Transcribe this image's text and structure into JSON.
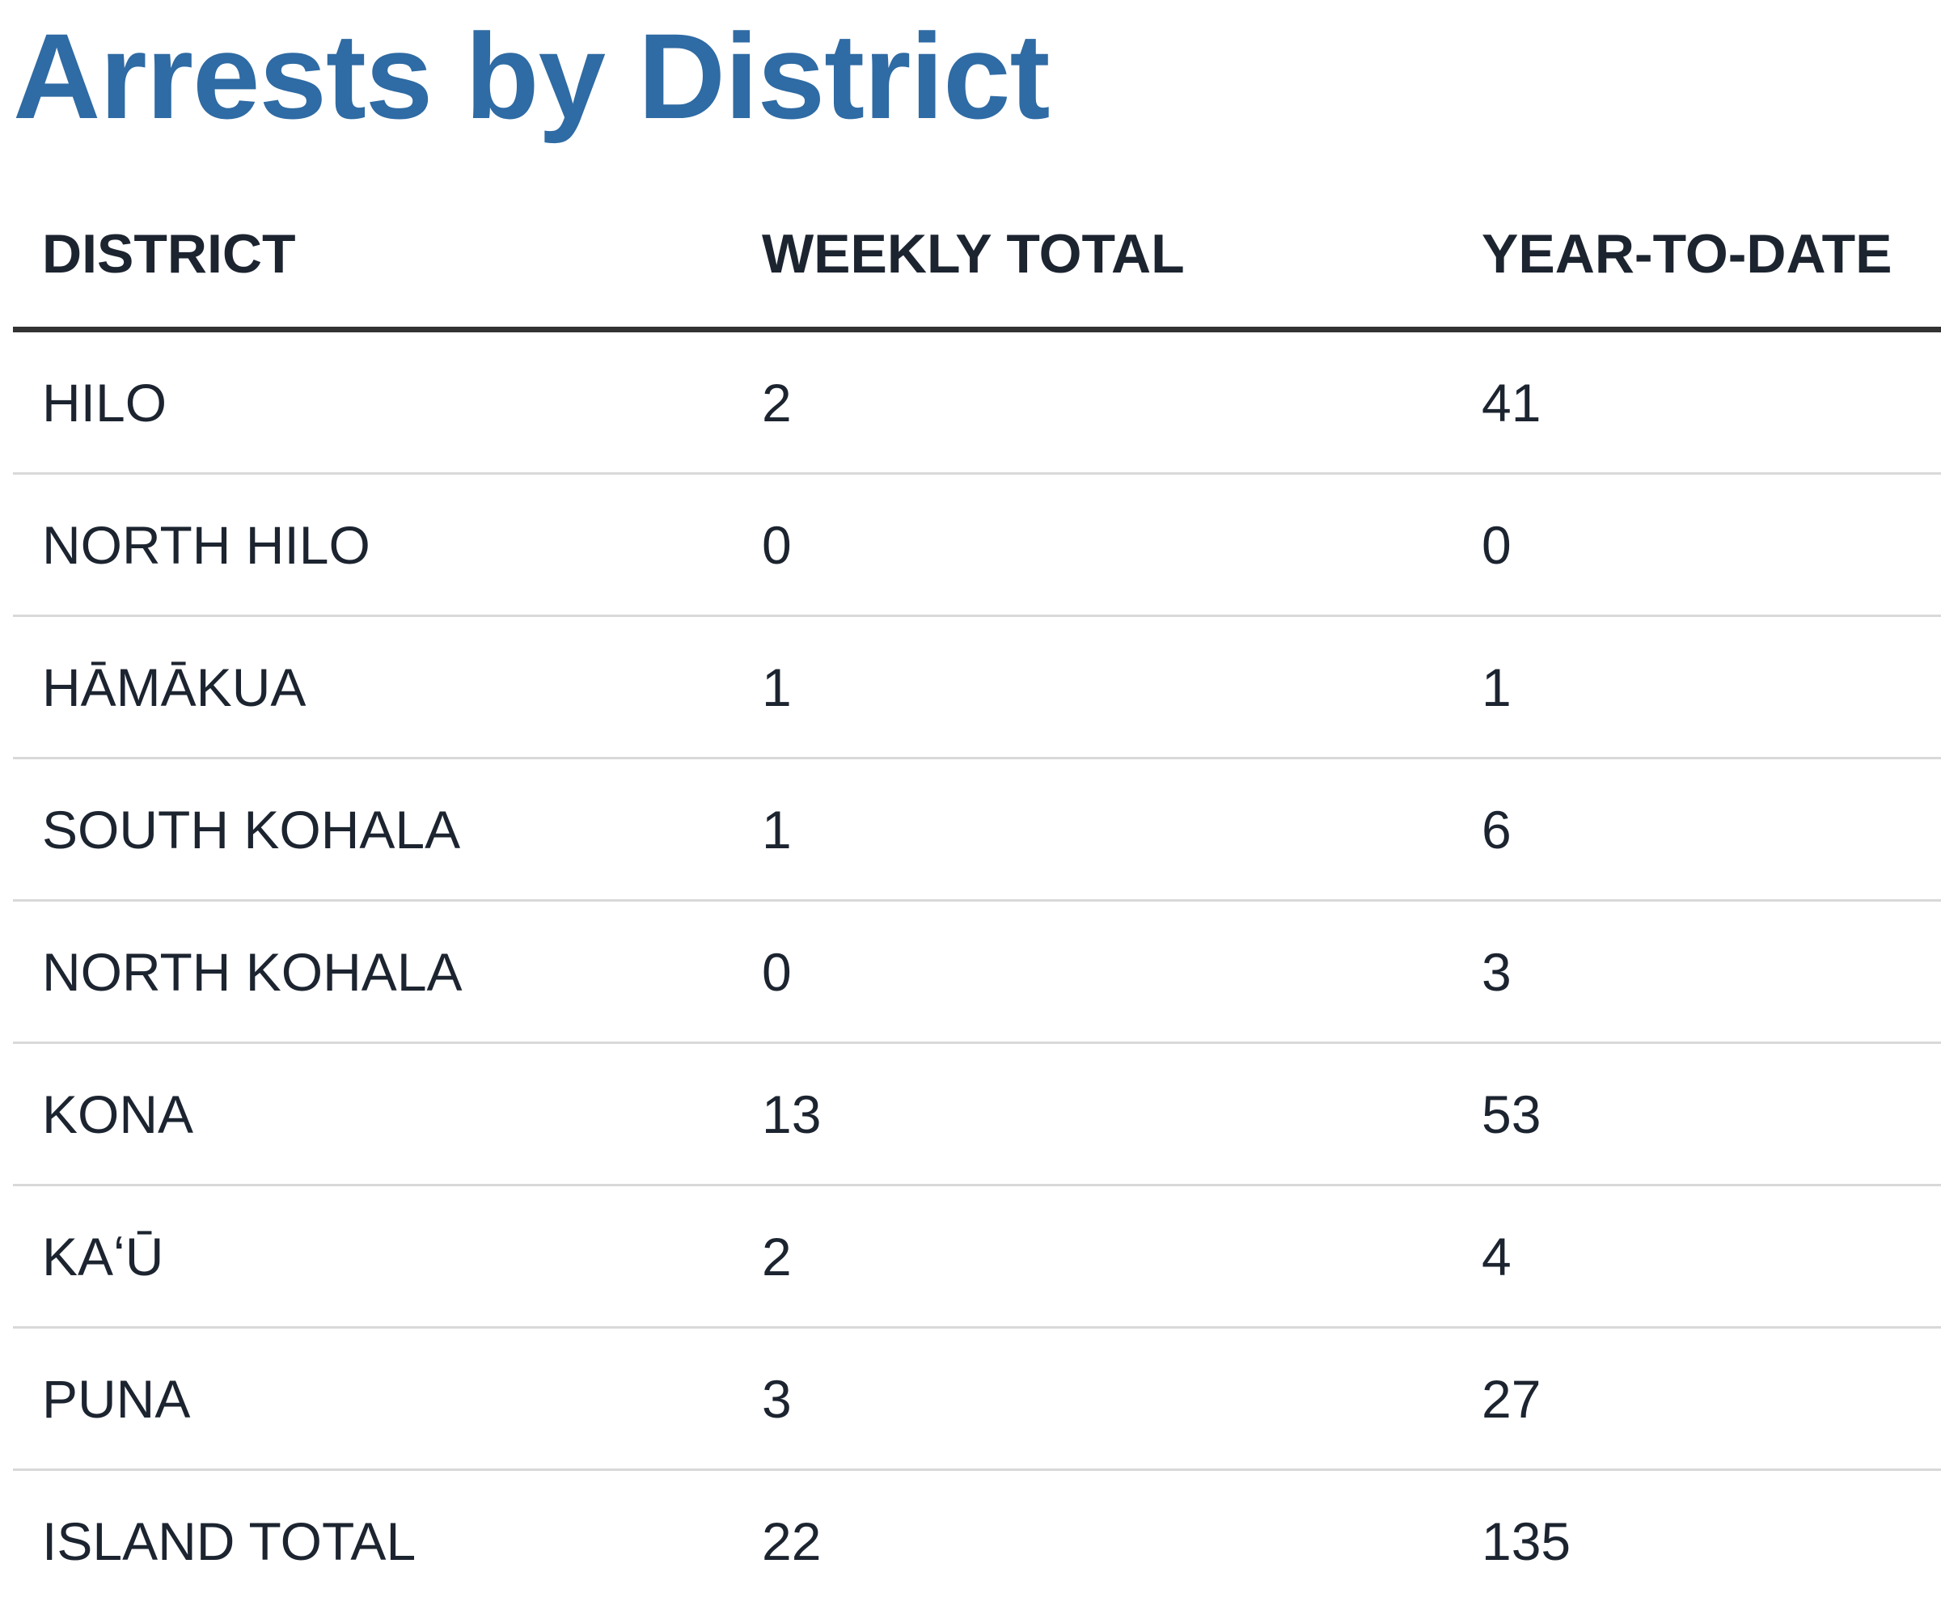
{
  "title": "Arrests by District",
  "table": {
    "headers": [
      "DISTRICT",
      "WEEKLY TOTAL",
      "YEAR-TO-DATE"
    ],
    "rows": [
      {
        "district": "HILO",
        "weekly_total": "2",
        "year_to_date": "41"
      },
      {
        "district": "NORTH HILO",
        "weekly_total": "0",
        "year_to_date": "0"
      },
      {
        "district": "HĀMĀKUA",
        "weekly_total": "1",
        "year_to_date": "1"
      },
      {
        "district": "SOUTH KOHALA",
        "weekly_total": "1",
        "year_to_date": "6"
      },
      {
        "district": "NORTH KOHALA",
        "weekly_total": "0",
        "year_to_date": "3"
      },
      {
        "district": "KONA",
        "weekly_total": "13",
        "year_to_date": "53"
      },
      {
        "district": "KAʻŪ",
        "weekly_total": "2",
        "year_to_date": "4"
      },
      {
        "district": "PUNA",
        "weekly_total": "3",
        "year_to_date": "27"
      },
      {
        "district": "ISLAND TOTAL",
        "weekly_total": "22",
        "year_to_date": "135"
      }
    ]
  },
  "colors": {
    "title": "#2f6ba4",
    "text": "#1c2430",
    "header_rule": "#333333",
    "row_rule": "#d9d9d9"
  }
}
